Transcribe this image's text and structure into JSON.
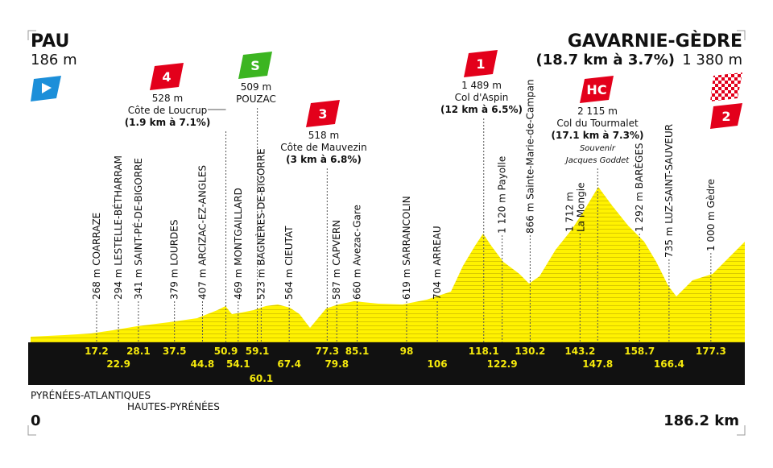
{
  "start": {
    "name": "PAU",
    "altitude": "186 m",
    "km": "0"
  },
  "finish": {
    "name": "GAVARNIE-GÈDRE",
    "climb": "(18.7 km à 3.7%)",
    "altitude": "1 380 m",
    "category": "2",
    "km": "186.2 km"
  },
  "points": [
    {
      "km": 17.2,
      "label": "268 m COARRAZE"
    },
    {
      "km": 22.9,
      "label": "294 m LESTELLE-BÉTHARRAM"
    },
    {
      "km": 28.1,
      "label": "341 m SAINT-PÉ-DE-BIGORRE"
    },
    {
      "km": 37.5,
      "label": "379 m LOURDES"
    },
    {
      "km": 44.8,
      "label": "407 m ARCIZAC-EZ-ANGLES"
    },
    {
      "km": 50.9,
      "climb": {
        "category": "4",
        "altitude": "528 m",
        "name": "Côte de Loucrup",
        "detail": "(1.9 km à 7.1%)"
      }
    },
    {
      "km": 54.1,
      "label": "469 m MONTGAILLARD"
    },
    {
      "km": 59.1,
      "climb": {
        "category": "S",
        "altitude": "509 m",
        "name": "POUZAC"
      }
    },
    {
      "km": 60.1,
      "label": "523 m BAGNÈRES-DE-BIGORRE"
    },
    {
      "km": 67.4,
      "label": "564 m CIEUTAT"
    },
    {
      "km": 77.3,
      "climb": {
        "category": "3",
        "altitude": "518 m",
        "name": "Côte de Mauvezin",
        "detail": "(3 km à 6.8%)"
      }
    },
    {
      "km": 79.8,
      "label": "587 m CAPVERN"
    },
    {
      "km": 85.1,
      "label": "660 m Avezac-Gare"
    },
    {
      "km": 98,
      "label": "619 m SARRANCOLIN"
    },
    {
      "km": 106,
      "label": "704 m ARREAU"
    },
    {
      "km": 118.1,
      "climb": {
        "category": "1",
        "altitude": "1 489 m",
        "name": "Col d'Aspin",
        "detail": "(12 km à 6.5%)"
      }
    },
    {
      "km": 122.9,
      "label": "1 120 m Payolle"
    },
    {
      "km": 130.2,
      "label": "866 m Sainte-Marie-de-Campan"
    },
    {
      "km": 143.2,
      "label": "1 712 m",
      "label2": "La Mongie"
    },
    {
      "km": 147.8,
      "climb": {
        "category": "HC",
        "altitude": "2 115 m",
        "name": "Col du Tourmalet",
        "detail": "(17.1 km à 7.3%)",
        "note": "Souvenir",
        "note2": "Jacques Goddet"
      }
    },
    {
      "km": 158.7,
      "label": "1 292 m BARÈGES"
    },
    {
      "km": 166.4,
      "label": "735 m LUZ-SAINT-SAUVEUR"
    },
    {
      "km": 177.3,
      "label": "1 000 m Gèdre"
    }
  ],
  "departments": [
    "PYRÉNÉES-ATLANTIQUES",
    "HAUTES-PYRÉNÉES"
  ]
}
